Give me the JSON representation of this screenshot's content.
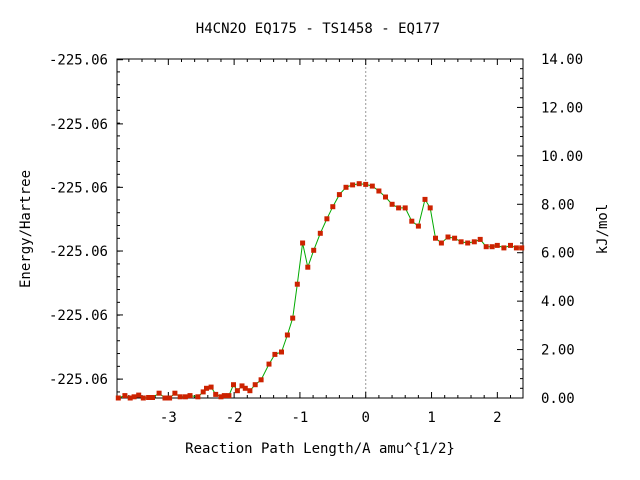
{
  "chart_data": {
    "type": "line",
    "title": "H4CN2O   EQ175 - TS1458 - EQ177",
    "xlabel": "Reaction Path Length/A amu^{1/2}",
    "ylabel_left": "Energy/Hartree",
    "ylabel_right": "kJ/mol",
    "xlim": [
      -3.78,
      2.39
    ],
    "ylim_kj": [
      0,
      14
    ],
    "x_ticks": [
      {
        "value": -3,
        "label": "-3"
      },
      {
        "value": -2,
        "label": "-2"
      },
      {
        "value": -1,
        "label": "-1"
      },
      {
        "value": 0,
        "label": "0"
      },
      {
        "value": 1,
        "label": "1"
      },
      {
        "value": 2,
        "label": "2"
      }
    ],
    "left_ticks": [
      {
        "kj": 0.78,
        "label": "-225.06"
      },
      {
        "kj": 3.43,
        "label": "-225.06"
      },
      {
        "kj": 6.07,
        "label": "-225.06"
      },
      {
        "kj": 8.7,
        "label": "-225.06"
      },
      {
        "kj": 11.32,
        "label": "-225.06"
      },
      {
        "kj": 13.97,
        "label": "-225.06"
      }
    ],
    "right_ticks": [
      {
        "kj": 0,
        "label": "0.00"
      },
      {
        "kj": 2,
        "label": "2.00"
      },
      {
        "kj": 4,
        "label": "4.00"
      },
      {
        "kj": 6,
        "label": "6.00"
      },
      {
        "kj": 8,
        "label": "8.00"
      },
      {
        "kj": 10,
        "label": "10.00"
      },
      {
        "kj": 12,
        "label": "12.00"
      },
      {
        "kj": 14,
        "label": "14.00"
      }
    ],
    "ts_x": 0.0,
    "line_color": "#00aa00",
    "marker_color": "#cc2200",
    "grid": false,
    "series": [
      {
        "points": [
          [
            -3.76,
            0.0
          ],
          [
            -3.66,
            0.1
          ],
          [
            -3.58,
            0.0
          ],
          [
            -3.52,
            0.05
          ],
          [
            -3.45,
            0.12
          ],
          [
            -3.38,
            0.0
          ],
          [
            -3.3,
            0.02
          ],
          [
            -3.24,
            0.02
          ],
          [
            -3.14,
            0.2
          ],
          [
            -3.05,
            0.0
          ],
          [
            -2.98,
            0.0
          ],
          [
            -2.9,
            0.2
          ],
          [
            -2.82,
            0.05
          ],
          [
            -2.74,
            0.05
          ],
          [
            -2.67,
            0.1
          ],
          [
            -2.55,
            0.05
          ],
          [
            -2.47,
            0.25
          ],
          [
            -2.42,
            0.4
          ],
          [
            -2.35,
            0.45
          ],
          [
            -2.28,
            0.15
          ],
          [
            -2.2,
            0.05
          ],
          [
            -2.15,
            0.1
          ],
          [
            -2.08,
            0.1
          ],
          [
            -2.01,
            0.55
          ],
          [
            -1.95,
            0.3
          ],
          [
            -1.88,
            0.5
          ],
          [
            -1.83,
            0.4
          ],
          [
            -1.76,
            0.3
          ],
          [
            -1.68,
            0.55
          ],
          [
            -1.59,
            0.75
          ],
          [
            -1.47,
            1.4
          ],
          [
            -1.38,
            1.8
          ],
          [
            -1.28,
            1.9
          ],
          [
            -1.19,
            2.6
          ],
          [
            -1.11,
            3.3
          ],
          [
            -1.04,
            4.7
          ],
          [
            -0.96,
            6.4
          ],
          [
            -0.88,
            5.4
          ],
          [
            -0.79,
            6.1
          ],
          [
            -0.69,
            6.8
          ],
          [
            -0.59,
            7.4
          ],
          [
            -0.5,
            7.9
          ],
          [
            -0.4,
            8.4
          ],
          [
            -0.3,
            8.7
          ],
          [
            -0.2,
            8.8
          ],
          [
            -0.1,
            8.85
          ],
          [
            0.0,
            8.82
          ],
          [
            0.1,
            8.75
          ],
          [
            0.2,
            8.55
          ],
          [
            0.3,
            8.3
          ],
          [
            0.4,
            8.0
          ],
          [
            0.5,
            7.85
          ],
          [
            0.6,
            7.85
          ],
          [
            0.7,
            7.3
          ],
          [
            0.8,
            7.1
          ],
          [
            0.9,
            8.2
          ],
          [
            0.98,
            7.85
          ],
          [
            1.06,
            6.6
          ],
          [
            1.15,
            6.4
          ],
          [
            1.25,
            6.65
          ],
          [
            1.35,
            6.6
          ],
          [
            1.45,
            6.45
          ],
          [
            1.55,
            6.4
          ],
          [
            1.65,
            6.45
          ],
          [
            1.74,
            6.55
          ],
          [
            1.83,
            6.25
          ],
          [
            1.92,
            6.25
          ],
          [
            2.0,
            6.3
          ],
          [
            2.1,
            6.2
          ],
          [
            2.2,
            6.3
          ],
          [
            2.29,
            6.2
          ],
          [
            2.37,
            6.2
          ]
        ]
      }
    ]
  }
}
